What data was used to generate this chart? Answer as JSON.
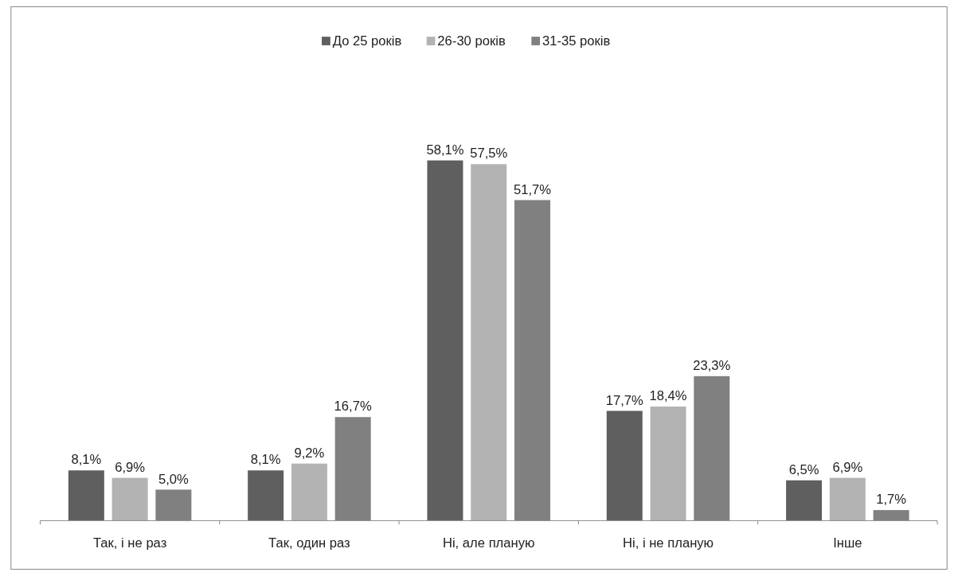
{
  "chart_data": {
    "type": "bar",
    "categories": [
      "Так, і не раз",
      "Так, один раз",
      "Ні, але планую",
      "Ні, і не планую",
      "Інше"
    ],
    "legend": "top",
    "series": [
      {
        "name": "До 25 років",
        "color": "#5f5f5f",
        "values": [
          8.1,
          8.1,
          58.1,
          17.7,
          6.5
        ],
        "value_labels": [
          "8,1%",
          "8,1%",
          "58,1%",
          "17,7%",
          "6,5%"
        ]
      },
      {
        "name": "26-30 років",
        "color": "#b3b3b3",
        "values": [
          6.9,
          9.2,
          57.5,
          18.4,
          6.9
        ],
        "value_labels": [
          "6,9%",
          "9,2%",
          "57,5%",
          "18,4%",
          "6,9%"
        ]
      },
      {
        "name": "31-35 років",
        "color": "#808080",
        "values": [
          5.0,
          16.7,
          51.7,
          23.3,
          1.7
        ],
        "value_labels": [
          "5,0%",
          "16,7%",
          "51,7%",
          "23,3%",
          "1,7%"
        ]
      }
    ]
  }
}
